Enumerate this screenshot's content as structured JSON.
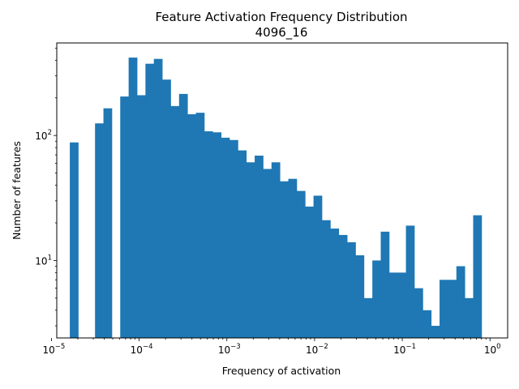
{
  "chart_data": {
    "type": "bar",
    "title": "Feature Activation Frequency Distribution",
    "subtitle": "4096_16",
    "xlabel": "Frequency of activation",
    "ylabel": "Number of features",
    "xscale": "log",
    "yscale": "log",
    "xlim": [
      1.15e-05,
      1.59
    ],
    "ylim": [
      2.4,
      550
    ],
    "x_ticks": [
      {
        "value": 1e-05,
        "base": "10",
        "exp": "−5"
      },
      {
        "value": 0.0001,
        "base": "10",
        "exp": "−4"
      },
      {
        "value": 0.001,
        "base": "10",
        "exp": "−3"
      },
      {
        "value": 0.01,
        "base": "10",
        "exp": "−2"
      },
      {
        "value": 0.1,
        "base": "10",
        "exp": "−1"
      },
      {
        "value": 1,
        "base": "10",
        "exp": "0"
      }
    ],
    "y_ticks": [
      {
        "value": 10,
        "base": "10",
        "exp": "1"
      },
      {
        "value": 100,
        "base": "10",
        "exp": "2"
      }
    ],
    "bin_range": [
      1.62e-05,
      1.0
    ],
    "bin_count": 50,
    "values": [
      88,
      0,
      0,
      125,
      165,
      0,
      205,
      420,
      210,
      375,
      410,
      280,
      172,
      215,
      148,
      152,
      108,
      106,
      96,
      92,
      76,
      61,
      69,
      54,
      61,
      43,
      45,
      36,
      27,
      33,
      21,
      18,
      16,
      14,
      11,
      5,
      10,
      17,
      8,
      8,
      19,
      6,
      4,
      3,
      7,
      7,
      9,
      5,
      23,
      0
    ],
    "bar_color": "#1f77b4",
    "grid": false,
    "legend": "none"
  }
}
